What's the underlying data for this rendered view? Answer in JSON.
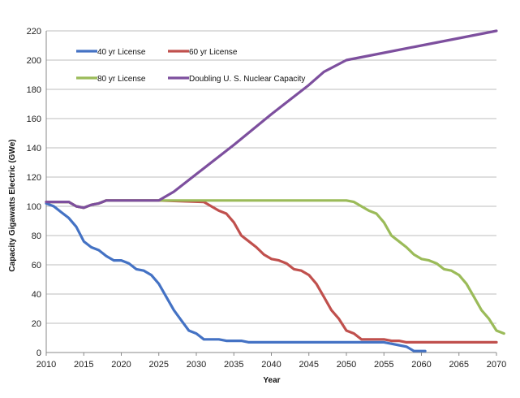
{
  "chart_data": {
    "type": "line",
    "title": "",
    "xlabel": "Year",
    "ylabel": "Capacity Gigawatts Electric (GWe)",
    "xlim": [
      2010,
      2070
    ],
    "ylim": [
      0,
      220
    ],
    "xticks": [
      2010,
      2015,
      2020,
      2025,
      2030,
      2035,
      2040,
      2045,
      2050,
      2055,
      2060,
      2065,
      2070
    ],
    "yticks": [
      0,
      20,
      40,
      60,
      80,
      100,
      120,
      140,
      160,
      180,
      200,
      220
    ],
    "grid": "horizontal",
    "legend": "top-left",
    "series": [
      {
        "name": "40 yr License",
        "color": "#4472C4",
        "points": [
          [
            2010,
            102
          ],
          [
            2011,
            100
          ],
          [
            2012,
            96
          ],
          [
            2013,
            92
          ],
          [
            2014,
            86
          ],
          [
            2015,
            76
          ],
          [
            2016,
            72
          ],
          [
            2017,
            70
          ],
          [
            2018,
            66
          ],
          [
            2019,
            63
          ],
          [
            2020,
            63
          ],
          [
            2021,
            61
          ],
          [
            2022,
            57
          ],
          [
            2023,
            56
          ],
          [
            2024,
            53
          ],
          [
            2025,
            47
          ],
          [
            2026,
            38
          ],
          [
            2027,
            29
          ],
          [
            2028,
            22
          ],
          [
            2029,
            15
          ],
          [
            2030,
            13
          ],
          [
            2031,
            9
          ],
          [
            2032,
            9
          ],
          [
            2033,
            9
          ],
          [
            2034,
            8
          ],
          [
            2035,
            8
          ],
          [
            2036,
            8
          ],
          [
            2037,
            7
          ],
          [
            2040,
            7
          ],
          [
            2045,
            7
          ],
          [
            2050,
            7
          ],
          [
            2055,
            7
          ],
          [
            2056,
            6
          ],
          [
            2057,
            5
          ],
          [
            2058,
            4
          ],
          [
            2059,
            1
          ],
          [
            2060.5,
            1
          ]
        ]
      },
      {
        "name": "60 yr License",
        "color": "#C0504D",
        "points": [
          [
            2010,
            103
          ],
          [
            2013,
            103
          ],
          [
            2014,
            100
          ],
          [
            2015,
            99
          ],
          [
            2016,
            101
          ],
          [
            2017,
            102
          ],
          [
            2018,
            104
          ],
          [
            2020,
            104
          ],
          [
            2025,
            104
          ],
          [
            2031,
            103
          ],
          [
            2032,
            100
          ],
          [
            2033,
            97
          ],
          [
            2034,
            95
          ],
          [
            2035,
            89
          ],
          [
            2036,
            80
          ],
          [
            2037,
            76
          ],
          [
            2038,
            72
          ],
          [
            2039,
            67
          ],
          [
            2040,
            64
          ],
          [
            2041,
            63
          ],
          [
            2042,
            61
          ],
          [
            2043,
            57
          ],
          [
            2044,
            56
          ],
          [
            2045,
            53
          ],
          [
            2046,
            47
          ],
          [
            2047,
            38
          ],
          [
            2048,
            29
          ],
          [
            2049,
            23
          ],
          [
            2050,
            15
          ],
          [
            2051,
            13
          ],
          [
            2052,
            9
          ],
          [
            2055,
            9
          ],
          [
            2056,
            8
          ],
          [
            2057,
            8
          ],
          [
            2058,
            7
          ],
          [
            2070,
            7
          ]
        ]
      },
      {
        "name": "80 yr License",
        "color": "#9BBB59",
        "points": [
          [
            2010,
            103
          ],
          [
            2013,
            103
          ],
          [
            2014,
            100
          ],
          [
            2015,
            99
          ],
          [
            2016,
            101
          ],
          [
            2017,
            102
          ],
          [
            2018,
            104
          ],
          [
            2020,
            104
          ],
          [
            2025,
            104
          ],
          [
            2030,
            104
          ],
          [
            2040,
            104
          ],
          [
            2049,
            104
          ],
          [
            2050,
            104
          ],
          [
            2051,
            103
          ],
          [
            2052,
            100
          ],
          [
            2053,
            97
          ],
          [
            2054,
            95
          ],
          [
            2055,
            89
          ],
          [
            2056,
            80
          ],
          [
            2057,
            76
          ],
          [
            2058,
            72
          ],
          [
            2059,
            67
          ],
          [
            2060,
            64
          ],
          [
            2061,
            63
          ],
          [
            2062,
            61
          ],
          [
            2063,
            57
          ],
          [
            2064,
            56
          ],
          [
            2065,
            53
          ],
          [
            2066,
            47
          ],
          [
            2067,
            38
          ],
          [
            2068,
            29
          ],
          [
            2069,
            23
          ],
          [
            2070,
            15
          ],
          [
            2071,
            13
          ]
        ]
      },
      {
        "name": "Doubling U. S. Nuclear Capacity",
        "color": "#7D4F9E",
        "points": [
          [
            2010,
            103
          ],
          [
            2013,
            103
          ],
          [
            2014,
            100
          ],
          [
            2015,
            99
          ],
          [
            2016,
            101
          ],
          [
            2017,
            102
          ],
          [
            2018,
            104
          ],
          [
            2020,
            104
          ],
          [
            2025,
            104
          ],
          [
            2027,
            110
          ],
          [
            2030,
            122
          ],
          [
            2035,
            142
          ],
          [
            2040,
            163
          ],
          [
            2045,
            183
          ],
          [
            2047,
            192
          ],
          [
            2050,
            200
          ],
          [
            2055,
            205
          ],
          [
            2060,
            210
          ],
          [
            2065,
            215
          ],
          [
            2070,
            220
          ]
        ]
      }
    ]
  }
}
